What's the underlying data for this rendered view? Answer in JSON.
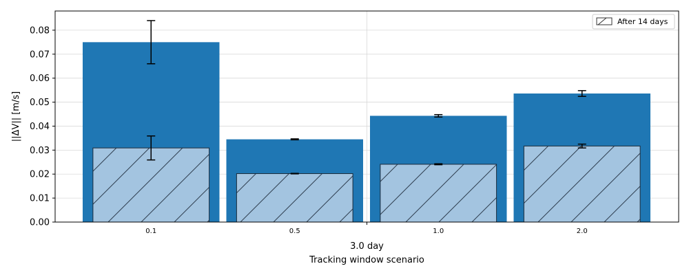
{
  "chart_data": {
    "type": "bar",
    "categories": [
      "0.1",
      "0.5",
      "1.0",
      "2.0"
    ],
    "group_label": "3.0 day",
    "xlabel": "Tracking window scenario",
    "ylabel": "||ΔV|| [m/s]",
    "ylim": [
      0,
      0.088
    ],
    "yticks": [
      "0.00",
      "0.01",
      "0.02",
      "0.03",
      "0.04",
      "0.05",
      "0.06",
      "0.07",
      "0.08"
    ],
    "grid": true,
    "legend_position": "top-right",
    "series": [
      {
        "values": [
          0.075,
          0.0345,
          0.0443,
          0.0536
        ],
        "errors": [
          0.009,
          0.0002,
          0.0005,
          0.0012
        ],
        "color": "#1f77b4"
      },
      {
        "name": "After 14 days",
        "values": [
          0.0309,
          0.0202,
          0.0241,
          0.0317
        ],
        "errors": [
          0.005,
          0.0001,
          0.0002,
          0.0008
        ],
        "color": "#a3c4e0",
        "hatch": true
      }
    ]
  }
}
